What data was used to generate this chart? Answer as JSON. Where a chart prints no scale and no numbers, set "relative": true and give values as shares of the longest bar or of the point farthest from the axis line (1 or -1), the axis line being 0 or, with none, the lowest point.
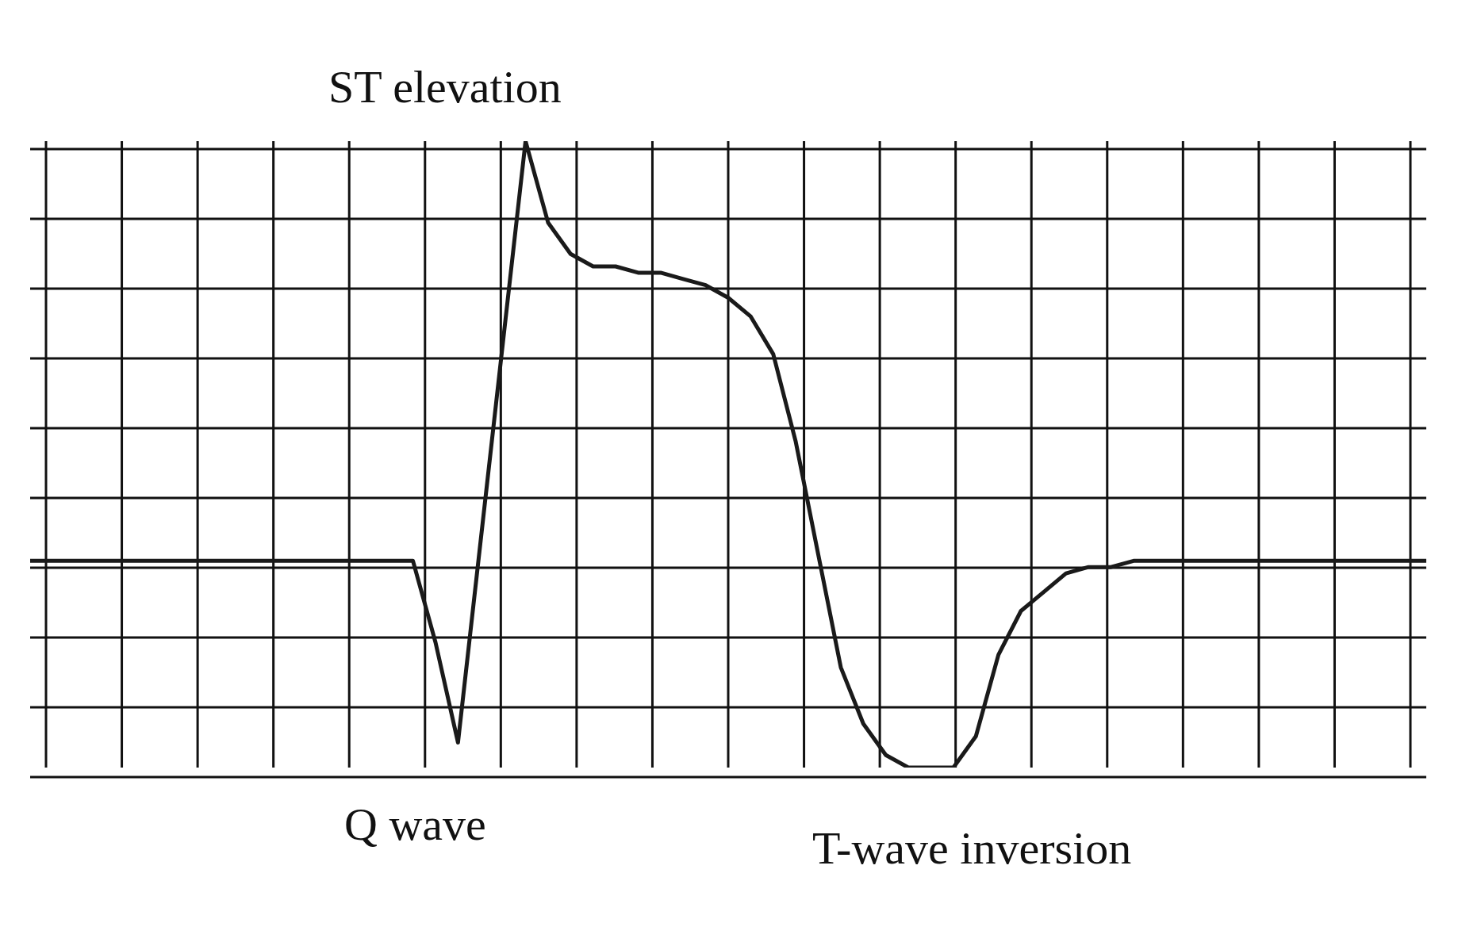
{
  "chart_data": {
    "type": "line",
    "relative": true,
    "grid": true,
    "line_style": "solid",
    "categories": [
      null,
      null,
      null,
      null,
      null,
      null,
      null,
      null,
      null,
      null,
      null,
      null,
      null,
      null,
      null,
      null,
      null,
      null,
      null,
      null,
      null,
      null,
      null,
      null,
      null,
      null,
      null,
      null,
      null,
      null,
      null,
      null,
      null,
      null,
      null,
      null,
      null,
      null,
      null,
      null,
      null,
      null,
      null,
      null,
      null,
      null,
      null,
      null,
      null,
      null,
      null,
      null,
      null,
      null,
      null,
      null,
      null,
      null,
      null,
      null,
      null,
      null,
      null
    ],
    "series": [
      {
        "color": "#1a1a1a",
        "values": [
          0.33,
          0.33,
          0.33,
          0.33,
          0.33,
          0.33,
          0.33,
          0.33,
          0.33,
          0.33,
          0.33,
          0.33,
          0.33,
          0.33,
          0.33,
          0.33,
          0.33,
          0.33,
          0.2,
          0.04,
          0.36,
          0.68,
          1,
          0.87,
          0.82,
          0.8,
          0.8,
          0.79,
          0.79,
          0.78,
          0.77,
          0.75,
          0.72,
          0.66,
          0.52,
          0.34,
          0.16,
          0.07,
          0.02,
          0,
          0,
          0,
          0.05,
          0.18,
          0.25,
          0.28,
          0.31,
          0.32,
          0.32,
          0.33,
          0.33,
          0.33,
          0.33,
          0.33,
          0.33,
          0.33,
          0.33,
          0.33,
          0.33,
          0.33,
          0.33,
          0.33,
          0.33
        ]
      }
    ],
    "annotations": [
      "ST elevation",
      "Q wave",
      "T-wave inversion"
    ]
  }
}
